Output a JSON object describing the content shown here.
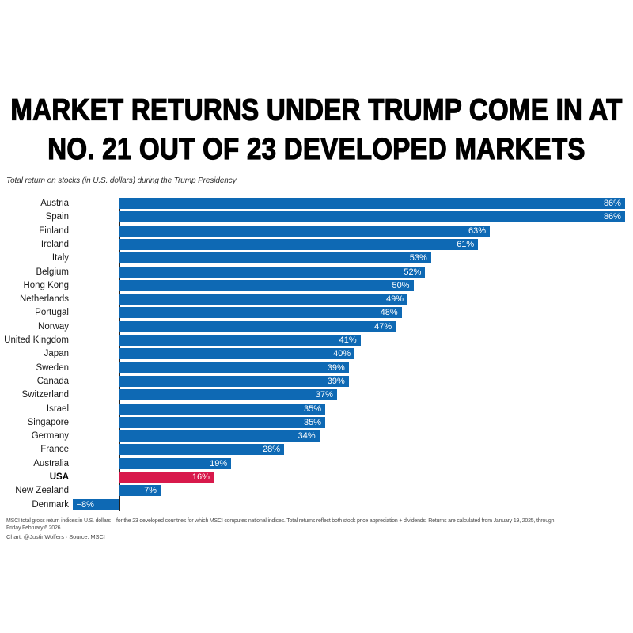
{
  "title": {
    "line1": "MARKET RETURNS UNDER TRUMP COME IN AT",
    "line2": "NO. 21 OUT OF 23 DEVELOPED MARKETS"
  },
  "subtitle": "Total return on stocks (in U.S. dollars) during the Trump Presidency",
  "chart_data": {
    "type": "bar",
    "orientation": "horizontal",
    "categories": [
      "Austria",
      "Spain",
      "Finland",
      "Ireland",
      "Italy",
      "Belgium",
      "Hong Kong",
      "Netherlands",
      "Portugal",
      "Norway",
      "United Kingdom",
      "Japan",
      "Sweden",
      "Canada",
      "Switzerland",
      "Israel",
      "Singapore",
      "Germany",
      "France",
      "Australia",
      "USA",
      "New Zealand",
      "Denmark"
    ],
    "values": [
      86,
      86,
      63,
      61,
      53,
      52,
      50,
      49,
      48,
      47,
      41,
      40,
      39,
      39,
      37,
      35,
      35,
      34,
      28,
      19,
      16,
      7,
      -8
    ],
    "value_labels": [
      "86%",
      "86%",
      "63%",
      "61%",
      "53%",
      "52%",
      "50%",
      "49%",
      "48%",
      "47%",
      "41%",
      "40%",
      "39%",
      "39%",
      "37%",
      "35%",
      "35%",
      "34%",
      "28%",
      "19%",
      "16%",
      "7%",
      "−8%"
    ],
    "highlight_category": "USA",
    "bar_color": "#0e69b4",
    "highlight_color": "#d8194b",
    "axis_color": "#222222",
    "xlim": [
      -10,
      88
    ],
    "grid": false,
    "legend": false,
    "value_suffix": "%",
    "title": "MARKET RETURNS UNDER TRUMP COME IN AT NO. 21 OUT OF 23 DEVELOPED MARKETS",
    "xlabel": "",
    "ylabel": ""
  },
  "footer": {
    "note_line1": "MSCI total gross return indices in U.S. dollars – for the 23 developed countries for which MSCI computes national indices. Total returns reflect both stock price appreciation + dividends. Returns are calculated from January 19, 2025, through",
    "note_line2": "Friday February 6 2026",
    "credit": "Chart: @JustinWolfers · Source: MSCI"
  }
}
